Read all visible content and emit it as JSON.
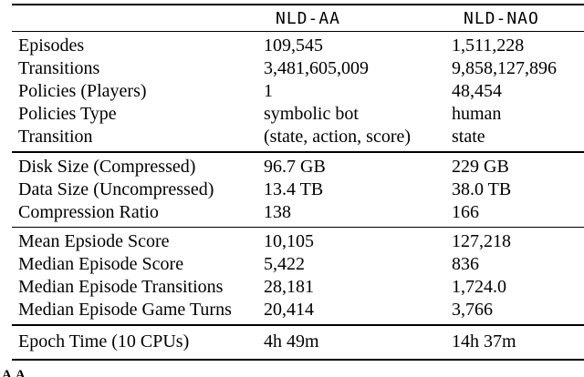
{
  "header": {
    "columns": [
      "NLD-AA",
      "NLD-NAO"
    ]
  },
  "table": {
    "sections": [
      {
        "rows": [
          {
            "label": "Episodes",
            "values": [
              "109,545",
              "1,511,228"
            ]
          },
          {
            "label": "Transitions",
            "values": [
              "3,481,605,009",
              "9,858,127,896"
            ]
          },
          {
            "label": "Policies (Players)",
            "values": [
              "1",
              "48,454"
            ]
          },
          {
            "label": "Policies Type",
            "values": [
              "symbolic bot",
              "human"
            ]
          },
          {
            "label": "Transition",
            "values": [
              "(state, action, score)",
              "state"
            ]
          }
        ]
      },
      {
        "rows": [
          {
            "label": "Disk Size (Compressed)",
            "values": [
              "96.7 GB",
              "229 GB"
            ]
          },
          {
            "label": "Data Size (Uncompressed)",
            "values": [
              "13.4 TB",
              "38.0 TB"
            ]
          },
          {
            "label": "Compression Ratio",
            "values": [
              "138",
              "166"
            ]
          }
        ]
      },
      {
        "rows": [
          {
            "label": "Mean Epsiode Score",
            "values": [
              "10,105",
              "127,218"
            ]
          },
          {
            "label": "Median Episode Score",
            "values": [
              "5,422",
              "836"
            ]
          },
          {
            "label": "Median Episode Transitions",
            "values": [
              "28,181",
              "1,724.0"
            ]
          },
          {
            "label": "Median Episode Game Turns",
            "values": [
              "20,414",
              "3,766"
            ]
          }
        ]
      },
      {
        "rows": [
          {
            "label": "Epoch Time (10 CPUs)",
            "values": [
              "4h 49m",
              "14h 37m"
            ]
          }
        ]
      }
    ]
  },
  "caption_fragment": "AA",
  "colors": {
    "background": "#ffffff",
    "text": "#000000",
    "rule": "#000000"
  }
}
